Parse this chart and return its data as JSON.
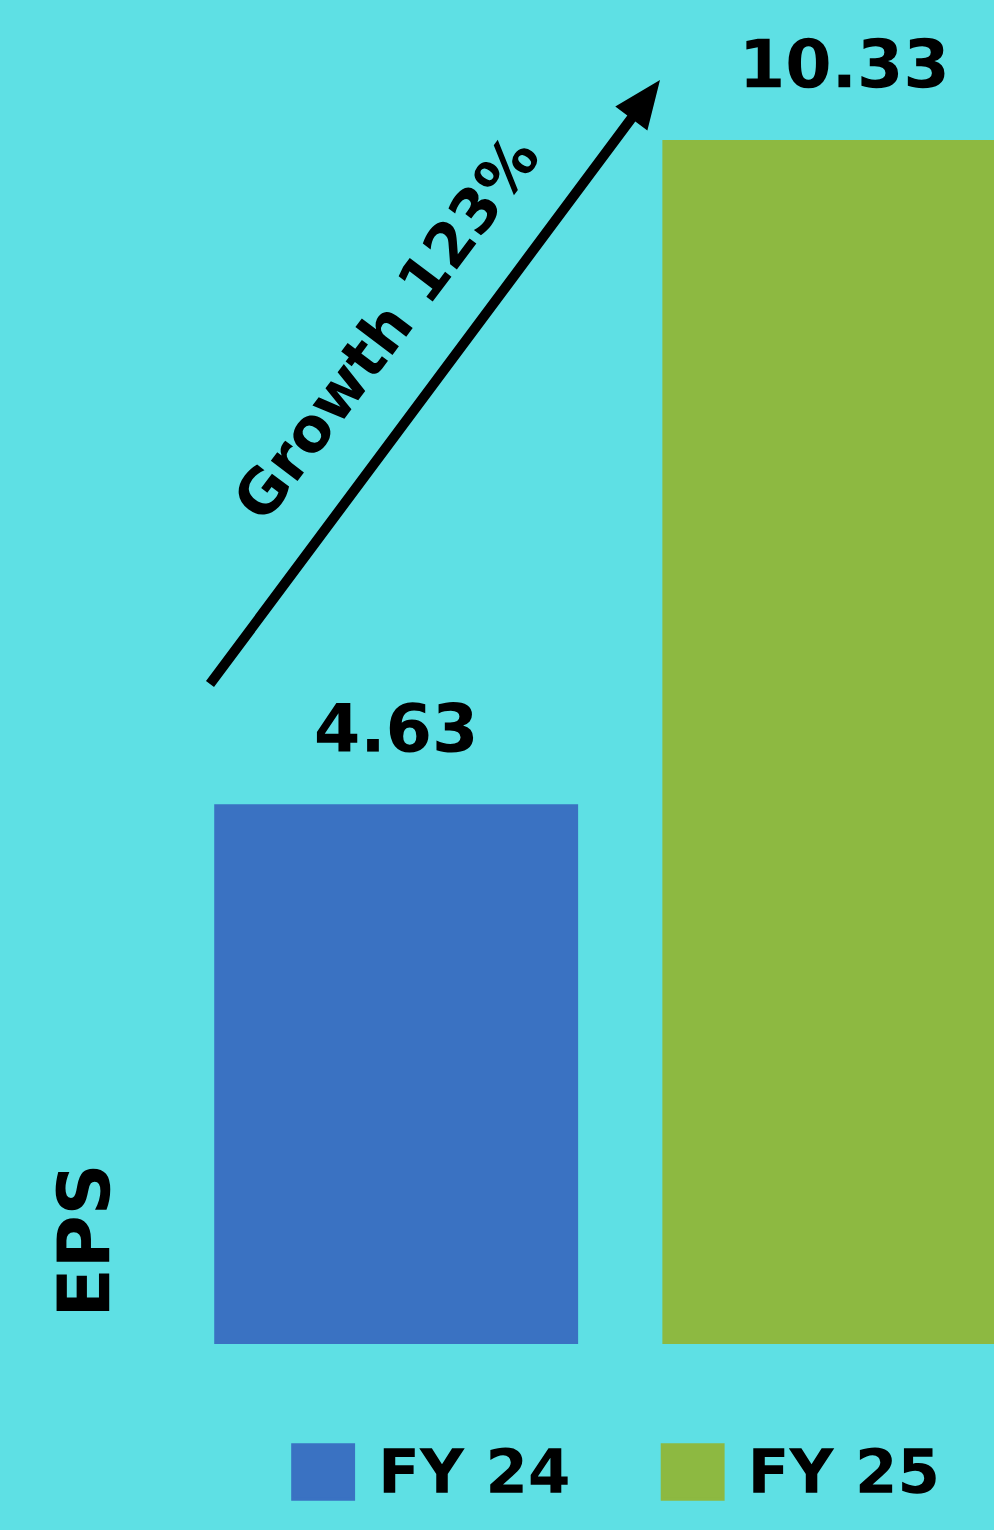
{
  "chart_data": {
    "type": "bar",
    "categories": [
      null
    ],
    "series": [
      {
        "name": "FY 24",
        "color": "#3a72c2",
        "values": [
          4.63
        ]
      },
      {
        "name": "FY 25",
        "color": "#8db941",
        "values": [
          10.33
        ]
      }
    ],
    "ylabel": "EPS",
    "annotations": [
      "Growth 123%"
    ],
    "data_labels": true,
    "legend": "bottom",
    "grid": false
  }
}
